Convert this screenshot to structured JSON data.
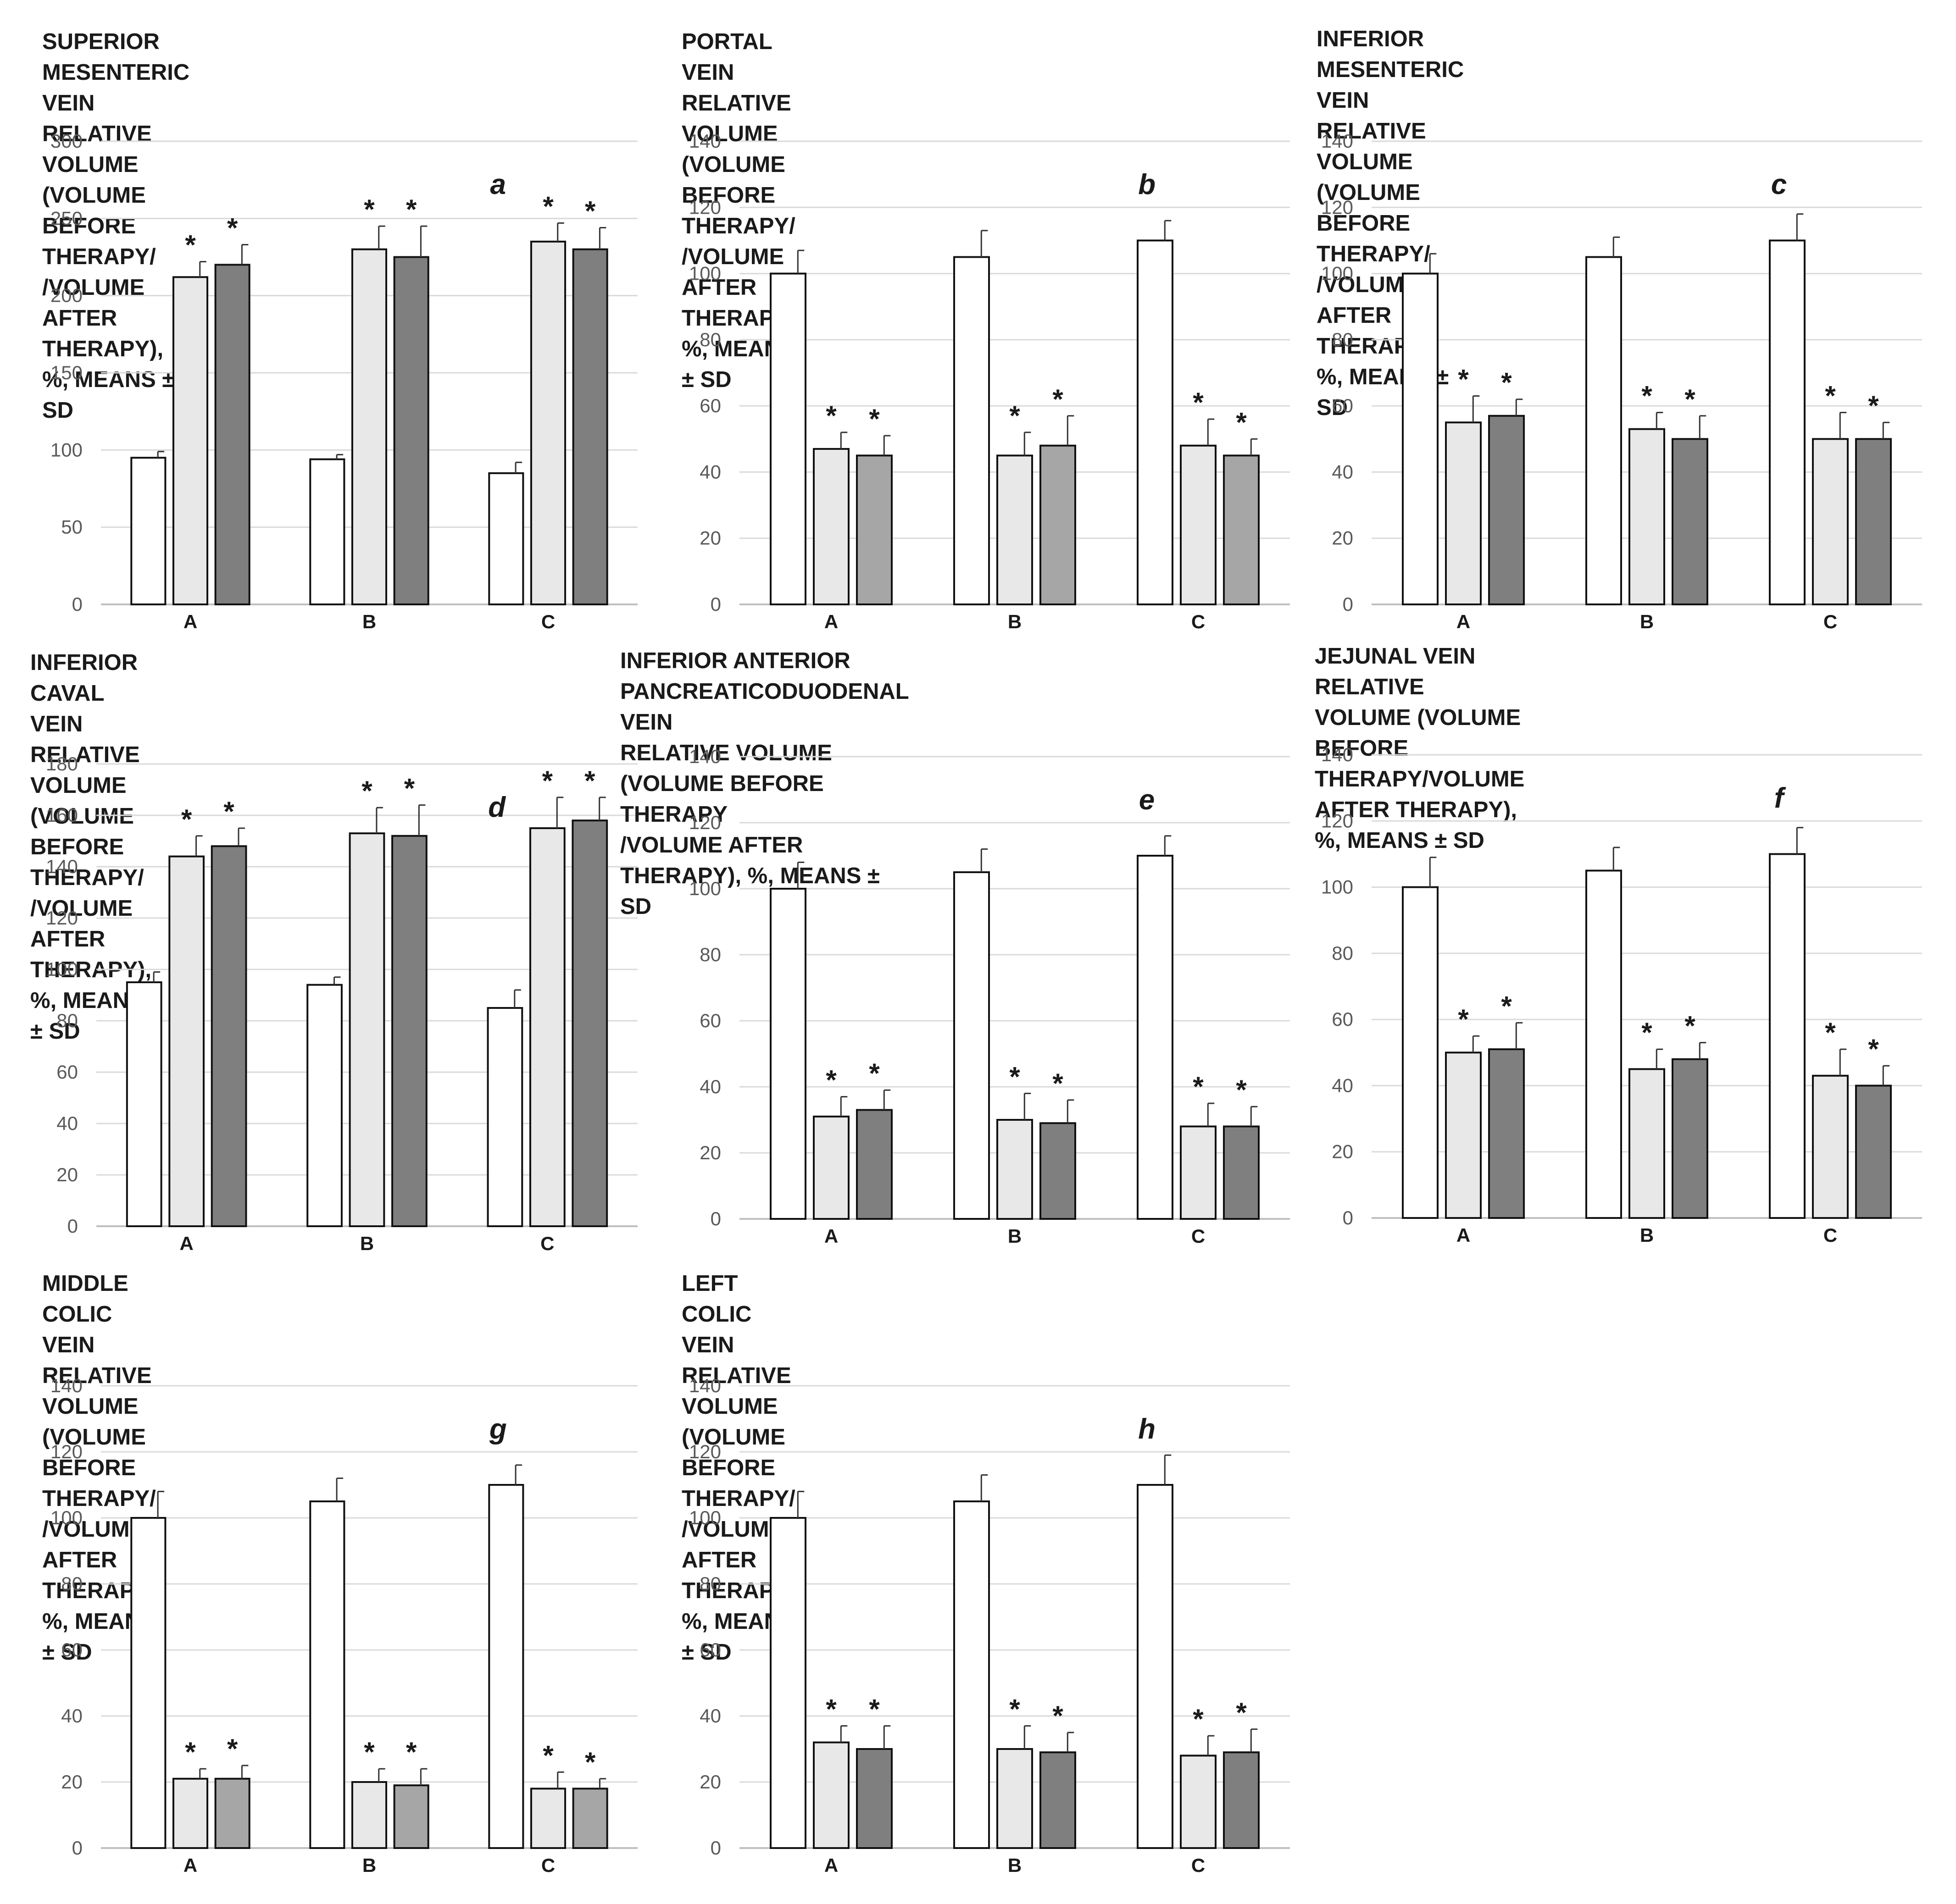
{
  "colors": {
    "before": "#ffffff",
    "light": "#e8e8e8",
    "mid": "#a6a6a6",
    "dark": "#7f7f7f",
    "axis": "#bfbfbf",
    "grid": "#dadada",
    "text": "#1a1a1a",
    "tick": "#595959"
  },
  "chart_data": [
    {
      "type": "bar",
      "letter": "a",
      "title": "SUPERIOR MESENTERIC VEIN RELATIVE\nVOLUME (VOLUME BEFORE THERAPY/\n/VOLUME AFTER THERAPY), %, MEANS ± SD",
      "categories": [
        "A",
        "B",
        "C"
      ],
      "ylim": [
        0,
        300
      ],
      "yticks": [
        0,
        50,
        100,
        150,
        200,
        250,
        300
      ],
      "grid": true,
      "legend": "none",
      "marker": "*",
      "series": [
        {
          "values": [
            95,
            94,
            85
          ],
          "sd": [
            4,
            3,
            7
          ],
          "color": "#ffffff",
          "significant": [
            false,
            false,
            false
          ]
        },
        {
          "values": [
            212,
            230,
            235
          ],
          "sd": [
            10,
            15,
            12
          ],
          "color": "#e8e8e8",
          "significant": [
            true,
            true,
            true
          ]
        },
        {
          "values": [
            220,
            225,
            230
          ],
          "sd": [
            13,
            20,
            14
          ],
          "color": "#7f7f7f",
          "significant": [
            true,
            true,
            true
          ]
        }
      ]
    },
    {
      "type": "bar",
      "letter": "b",
      "title": "PORTAL VEIN RELATIVE VOLUME\n(VOLUME BEFORE THERAPY/\n/VOLUME AFTER THERAPY), %, MEANS ± SD",
      "categories": [
        "A",
        "B",
        "C"
      ],
      "ylim": [
        0,
        140
      ],
      "yticks": [
        0,
        20,
        40,
        60,
        80,
        100,
        120,
        140
      ],
      "grid": true,
      "legend": "none",
      "marker": "*",
      "series": [
        {
          "values": [
            100,
            105,
            110
          ],
          "sd": [
            7,
            8,
            6
          ],
          "color": "#ffffff",
          "significant": [
            false,
            false,
            false
          ]
        },
        {
          "values": [
            47,
            45,
            48
          ],
          "sd": [
            5,
            7,
            8
          ],
          "color": "#e8e8e8",
          "significant": [
            true,
            true,
            true
          ]
        },
        {
          "values": [
            45,
            48,
            45
          ],
          "sd": [
            6,
            9,
            5
          ],
          "color": "#a6a6a6",
          "significant": [
            true,
            true,
            true
          ]
        }
      ]
    },
    {
      "type": "bar",
      "letter": "c",
      "title": "INFERIOR MESENTERIC VEIN RELATIVE\nVOLUME (VOLUME BEFORE THERAPY/\n/VOLUME AFTER THERAPY), %, MEANS ± SD",
      "categories": [
        "A",
        "B",
        "C"
      ],
      "ylim": [
        0,
        140
      ],
      "yticks": [
        0,
        20,
        40,
        60,
        80,
        100,
        120,
        140
      ],
      "grid": true,
      "legend": "none",
      "marker": "*",
      "series": [
        {
          "values": [
            100,
            105,
            110
          ],
          "sd": [
            6,
            6,
            8
          ],
          "color": "#ffffff",
          "significant": [
            false,
            false,
            false
          ]
        },
        {
          "values": [
            55,
            53,
            50
          ],
          "sd": [
            8,
            5,
            8
          ],
          "color": "#e8e8e8",
          "significant": [
            true,
            true,
            true
          ]
        },
        {
          "values": [
            57,
            50,
            50
          ],
          "sd": [
            5,
            7,
            5
          ],
          "color": "#7f7f7f",
          "significant": [
            true,
            true,
            true
          ]
        }
      ]
    },
    {
      "type": "bar",
      "letter": "d",
      "title": "INFERIOR CAVAL VEIN RELATIVE VOLUME\n(VOLUME BEFORE THERAPY/\n/VOLUME AFTER THERAPY), %, MEANS ± SD",
      "categories": [
        "A",
        "B",
        "C"
      ],
      "ylim": [
        0,
        180
      ],
      "yticks": [
        0,
        20,
        40,
        60,
        80,
        100,
        120,
        140,
        160,
        180
      ],
      "grid": true,
      "legend": "none",
      "marker": "*",
      "series": [
        {
          "values": [
            95,
            94,
            85
          ],
          "sd": [
            4,
            3,
            7
          ],
          "color": "#ffffff",
          "significant": [
            false,
            false,
            false
          ]
        },
        {
          "values": [
            144,
            153,
            155
          ],
          "sd": [
            8,
            10,
            12
          ],
          "color": "#e8e8e8",
          "significant": [
            true,
            true,
            true
          ]
        },
        {
          "values": [
            148,
            152,
            158
          ],
          "sd": [
            7,
            12,
            9
          ],
          "color": "#7f7f7f",
          "significant": [
            true,
            true,
            true
          ]
        }
      ]
    },
    {
      "type": "bar",
      "letter": "e",
      "title": "INFERIOR ANTERIOR PANCREATICODUODENAL VEIN\nRELATIVE VOLUME (VOLUME BEFORE THERAPY\n/VOLUME AFTER THERAPY), %, MEANS ± SD",
      "categories": [
        "A",
        "B",
        "C"
      ],
      "ylim": [
        0,
        140
      ],
      "yticks": [
        0,
        20,
        40,
        60,
        80,
        100,
        120,
        140
      ],
      "grid": true,
      "legend": "none",
      "marker": "*",
      "series": [
        {
          "values": [
            100,
            105,
            110
          ],
          "sd": [
            8,
            7,
            6
          ],
          "color": "#ffffff",
          "significant": [
            false,
            false,
            false
          ]
        },
        {
          "values": [
            31,
            30,
            28
          ],
          "sd": [
            6,
            8,
            7
          ],
          "color": "#e8e8e8",
          "significant": [
            true,
            true,
            true
          ]
        },
        {
          "values": [
            33,
            29,
            28
          ],
          "sd": [
            6,
            7,
            6
          ],
          "color": "#7f7f7f",
          "significant": [
            true,
            true,
            true
          ]
        }
      ]
    },
    {
      "type": "bar",
      "letter": "f",
      "title": "JEJUNAL VEIN RELATIVE VOLUME (VOLUME\nBEFORE THERAPY/VOLUME AFTER THERAPY),\n%, MEANS ± SD",
      "categories": [
        "A",
        "B",
        "C"
      ],
      "ylim": [
        0,
        140
      ],
      "yticks": [
        0,
        20,
        40,
        60,
        80,
        100,
        120,
        140
      ],
      "grid": true,
      "legend": "none",
      "marker": "*",
      "series": [
        {
          "values": [
            100,
            105,
            110
          ],
          "sd": [
            9,
            7,
            8
          ],
          "color": "#ffffff",
          "significant": [
            false,
            false,
            false
          ]
        },
        {
          "values": [
            50,
            45,
            43
          ],
          "sd": [
            5,
            6,
            8
          ],
          "color": "#e8e8e8",
          "significant": [
            true,
            true,
            true
          ]
        },
        {
          "values": [
            51,
            48,
            40
          ],
          "sd": [
            8,
            5,
            6
          ],
          "color": "#7f7f7f",
          "significant": [
            true,
            true,
            true
          ]
        }
      ]
    },
    {
      "type": "bar",
      "letter": "g",
      "title": "MIDDLE COLIC VEIN RELATIVE VOLUME\n(VOLUME BEFORE THERAPY/\n/VOLUME AFTER THERAPY),  %, MEANS ± SD",
      "categories": [
        "A",
        "B",
        "C"
      ],
      "ylim": [
        0,
        140
      ],
      "yticks": [
        0,
        20,
        40,
        60,
        80,
        100,
        120,
        140
      ],
      "grid": true,
      "legend": "none",
      "marker": "*",
      "series": [
        {
          "values": [
            100,
            105,
            110
          ],
          "sd": [
            8,
            7,
            6
          ],
          "color": "#ffffff",
          "significant": [
            false,
            false,
            false
          ]
        },
        {
          "values": [
            21,
            20,
            18
          ],
          "sd": [
            3,
            4,
            5
          ],
          "color": "#e8e8e8",
          "significant": [
            true,
            true,
            true
          ]
        },
        {
          "values": [
            21,
            19,
            18
          ],
          "sd": [
            4,
            5,
            3
          ],
          "color": "#a6a6a6",
          "significant": [
            true,
            true,
            true
          ]
        }
      ]
    },
    {
      "type": "bar",
      "letter": "h",
      "title": "LEFT COLIC VEIN RELATIVE VOLUME\n(VOLUME BEFORE THERAPY/\n/VOLUME AFTER THERAPY), %, MEANS ± SD",
      "categories": [
        "A",
        "B",
        "C"
      ],
      "ylim": [
        0,
        140
      ],
      "yticks": [
        0,
        20,
        40,
        60,
        80,
        100,
        120,
        140
      ],
      "grid": true,
      "legend": "none",
      "marker": "*",
      "series": [
        {
          "values": [
            100,
            105,
            110
          ],
          "sd": [
            8,
            8,
            9
          ],
          "color": "#ffffff",
          "significant": [
            false,
            false,
            false
          ]
        },
        {
          "values": [
            32,
            30,
            28
          ],
          "sd": [
            5,
            7,
            6
          ],
          "color": "#e8e8e8",
          "significant": [
            true,
            true,
            true
          ]
        },
        {
          "values": [
            30,
            29,
            29
          ],
          "sd": [
            7,
            6,
            7
          ],
          "color": "#7f7f7f",
          "significant": [
            true,
            true,
            true
          ]
        }
      ]
    }
  ]
}
